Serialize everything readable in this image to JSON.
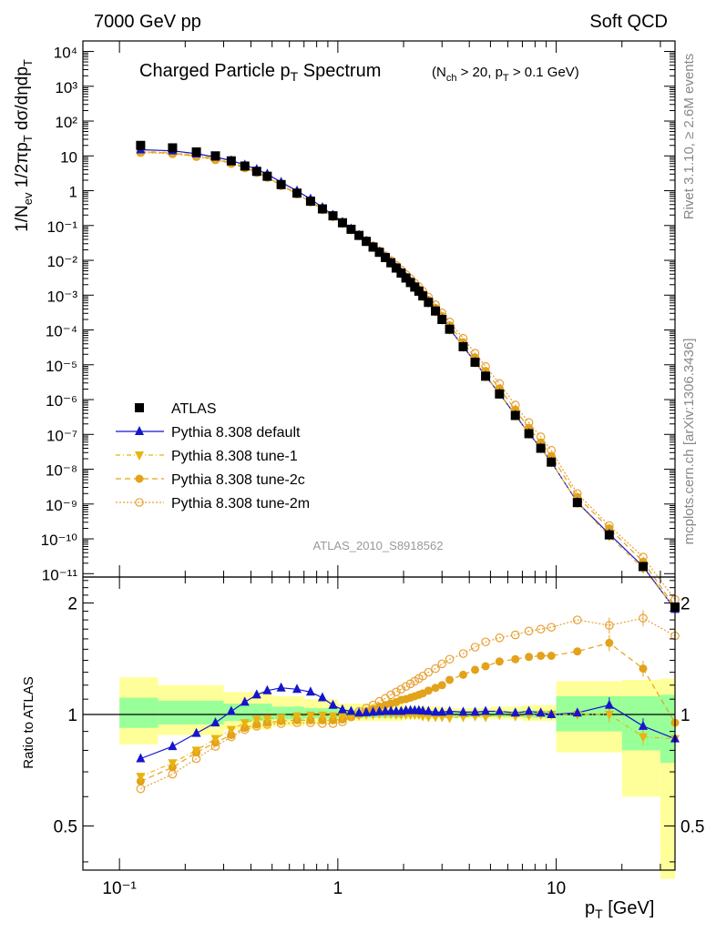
{
  "header": {
    "left": "7000 GeV pp",
    "right": "Soft QCD"
  },
  "side": {
    "top": "Rivet 3.1.10, ≥ 2.6M events",
    "bottom": "mcplots.cern.ch [arXiv:1306.3436]"
  },
  "colors": {
    "atlas": "#000000",
    "default": "#1515cc",
    "tune1": "#e8b411",
    "tune2c": "#e3a21a",
    "tune2m": "#e8a033",
    "band_outer": "#ffff99",
    "band_inner": "#99ff99"
  },
  "chart_data": [
    {
      "type": "line",
      "title": "Charged Particle p_T Spectrum",
      "subtitle": "(N_ch > 20, p_T > 0.1 GeV)",
      "ylabel": "1/N_ev 1/2πp_T dσ/dηdp_T",
      "xlabel": "",
      "analysis": "ATLAS_2010_S8918562",
      "xscale": "log",
      "yscale": "log",
      "xlim": [
        0.068,
        35
      ],
      "ylim": [
        8e-12,
        20000.0
      ],
      "xticks": [
        "10⁻¹",
        "1",
        "10"
      ],
      "yticks": [
        "10⁻¹¹",
        "10⁻¹⁰",
        "10⁻⁹",
        "10⁻⁸",
        "10⁻⁷",
        "10⁻⁶",
        "10⁻⁵",
        "10⁻⁴",
        "10⁻³",
        "10⁻²",
        "10⁻¹",
        "1",
        "10",
        "10²",
        "10³",
        "10⁴"
      ],
      "legend_position": "bottom-left",
      "x": [
        0.125,
        0.175,
        0.225,
        0.275,
        0.325,
        0.375,
        0.425,
        0.475,
        0.55,
        0.65,
        0.75,
        0.85,
        0.95,
        1.05,
        1.15,
        1.25,
        1.35,
        1.45,
        1.55,
        1.65,
        1.75,
        1.85,
        1.95,
        2.05,
        2.15,
        2.25,
        2.35,
        2.45,
        2.6,
        2.8,
        3.0,
        3.25,
        3.75,
        4.25,
        4.75,
        5.5,
        6.5,
        7.5,
        8.5,
        9.5,
        12.5,
        17.5,
        25,
        35
      ],
      "series": [
        {
          "name": "ATLAS",
          "marker": "square",
          "values": [
            20,
            17,
            13,
            10,
            7.2,
            5.1,
            3.6,
            2.6,
            1.5,
            0.85,
            0.5,
            0.3,
            0.19,
            0.12,
            0.078,
            0.052,
            0.035,
            0.024,
            0.017,
            0.012,
            0.0085,
            0.006,
            0.0043,
            0.0031,
            0.0023,
            0.0017,
            0.0013,
            0.00095,
            0.00062,
            0.00035,
            0.0002,
            0.000105,
            3.3e-05,
            1.18e-05,
            4.7e-06,
            1.45e-06,
            3.5e-07,
            1.05e-07,
            4e-08,
            1.6e-08,
            1.1e-09,
            1.3e-10,
            1.6e-11,
            1.1e-12
          ]
        },
        {
          "name": "Pythia 8.308 default",
          "marker": "triangle-up",
          "values": [
            15,
            14,
            11.5,
            9.3,
            7.3,
            5.5,
            4.1,
            3.0,
            1.75,
            0.99,
            0.58,
            0.33,
            0.2,
            0.125,
            0.08,
            0.053,
            0.0355,
            0.0243,
            0.0172,
            0.0121,
            0.0086,
            0.0061,
            0.0044,
            0.0032,
            0.00235,
            0.00174,
            0.00133,
            0.00097,
            0.00063,
            0.000355,
            0.000203,
            0.000107,
            3.35e-05,
            1.2e-05,
            4.8e-06,
            1.48e-06,
            3.6e-07,
            1.07e-07,
            4.05e-08,
            1.6e-08,
            1.12e-09,
            1.38e-10,
            1.6e-11,
            9.5e-13
          ]
        },
        {
          "name": "Pythia 8.308 tune-1",
          "marker": "triangle-down",
          "values": [
            13.5,
            12.5,
            10.4,
            8.6,
            6.5,
            4.8,
            3.45,
            2.5,
            1.46,
            0.84,
            0.5,
            0.3,
            0.185,
            0.118,
            0.077,
            0.052,
            0.035,
            0.024,
            0.0171,
            0.0121,
            0.0086,
            0.006,
            0.0043,
            0.0031,
            0.0023,
            0.0017,
            0.0013,
            0.00094,
            0.0006,
            0.00034,
            0.000196,
            0.000103,
            3.3e-05,
            1.18e-05,
            4.7e-06,
            1.45e-06,
            3.5e-07,
            1.05e-07,
            4e-08,
            1.6e-08,
            1.1e-09,
            1.2e-10,
            1.4e-11,
            1e-12
          ]
        },
        {
          "name": "Pythia 8.308 tune-2c",
          "marker": "circle",
          "values": [
            13,
            12,
            9.9,
            8.0,
            6.2,
            4.6,
            3.35,
            2.45,
            1.42,
            0.81,
            0.48,
            0.29,
            0.18,
            0.116,
            0.077,
            0.052,
            0.0357,
            0.0248,
            0.0178,
            0.0127,
            0.0091,
            0.0065,
            0.0047,
            0.0034,
            0.0026,
            0.0019,
            0.00149,
            0.0011,
            0.00073,
            0.00043,
            0.00025,
            0.000136,
            4.45e-05,
            1.62e-05,
            6.6e-06,
            2.1e-06,
            5.1e-07,
            1.55e-07,
            5.9e-08,
            2.4e-08,
            1.6e-09,
            2e-10,
            2.2e-11,
            1.1e-12
          ]
        },
        {
          "name": "Pythia 8.308 tune-2m",
          "marker": "circle-open",
          "values": [
            12.5,
            11.5,
            9.5,
            7.7,
            6.0,
            4.5,
            3.3,
            2.4,
            1.4,
            0.8,
            0.475,
            0.285,
            0.179,
            0.116,
            0.077,
            0.053,
            0.037,
            0.026,
            0.0188,
            0.0136,
            0.0099,
            0.0072,
            0.0053,
            0.0039,
            0.003,
            0.0022,
            0.00175,
            0.0013,
            0.00088,
            0.00053,
            0.00031,
            0.00017,
            5.75e-05,
            2.15e-05,
            8.9e-06,
            2.9e-06,
            7e-07,
            2.2e-07,
            8.5e-08,
            3.5e-08,
            2e-09,
            2.4e-10,
            3e-11,
            1.8e-12
          ]
        }
      ]
    },
    {
      "type": "line",
      "ylabel": "Ratio to ATLAS",
      "xlabel": "p_T  [GeV]",
      "xscale": "log",
      "xlim": [
        0.068,
        35
      ],
      "ylim": [
        0.38,
        2.35
      ],
      "xticks": [
        "10⁻¹",
        "1",
        "10"
      ],
      "yticks": [
        "0.5",
        "1",
        "2"
      ],
      "reference": 1,
      "band_edges": [
        0.1,
        0.15,
        0.3,
        0.5,
        0.7,
        1.0,
        2.0,
        3.0,
        5.0,
        7.0,
        10.0,
        20.0,
        30.0,
        40.0
      ],
      "band_outer": [
        [
          0.83,
          1.26
        ],
        [
          0.88,
          1.2
        ],
        [
          0.91,
          1.15
        ],
        [
          0.93,
          1.12
        ],
        [
          0.94,
          1.1
        ],
        [
          0.96,
          1.07
        ],
        [
          0.97,
          1.05
        ],
        [
          0.975,
          1.04
        ],
        [
          0.97,
          1.05
        ],
        [
          0.96,
          1.06
        ],
        [
          0.79,
          1.23
        ],
        [
          0.6,
          1.24
        ],
        [
          0.36,
          1.25
        ]
      ],
      "band_inner": [
        [
          0.92,
          1.11
        ],
        [
          0.94,
          1.09
        ],
        [
          0.96,
          1.07
        ],
        [
          0.97,
          1.05
        ],
        [
          0.975,
          1.04
        ],
        [
          0.98,
          1.03
        ],
        [
          0.985,
          1.02
        ],
        [
          0.985,
          1.02
        ],
        [
          0.985,
          1.02
        ],
        [
          0.98,
          1.025
        ],
        [
          0.9,
          1.12
        ],
        [
          0.8,
          1.12
        ],
        [
          0.74,
          1.13
        ]
      ],
      "x": [
        0.125,
        0.175,
        0.225,
        0.275,
        0.325,
        0.375,
        0.425,
        0.475,
        0.55,
        0.65,
        0.75,
        0.85,
        0.95,
        1.05,
        1.15,
        1.25,
        1.35,
        1.45,
        1.55,
        1.65,
        1.75,
        1.85,
        1.95,
        2.05,
        2.15,
        2.25,
        2.35,
        2.45,
        2.6,
        2.8,
        3.0,
        3.25,
        3.75,
        4.25,
        4.75,
        5.5,
        6.5,
        7.5,
        8.5,
        9.5,
        12.5,
        17.5,
        25,
        35
      ],
      "series": [
        {
          "name": "Pythia 8.308 default",
          "values": [
            0.76,
            0.82,
            0.89,
            0.95,
            1.02,
            1.08,
            1.13,
            1.16,
            1.18,
            1.17,
            1.15,
            1.11,
            1.06,
            1.03,
            1.02,
            1.01,
            1.012,
            1.015,
            1.018,
            1.02,
            1.02,
            1.02,
            1.02,
            1.025,
            1.025,
            1.025,
            1.025,
            1.022,
            1.02,
            1.015,
            1.015,
            1.02,
            1.015,
            1.015,
            1.02,
            1.02,
            1.01,
            1.02,
            1.01,
            1.0,
            1.01,
            1.06,
            0.93,
            0.86
          ]
        },
        {
          "name": "Pythia 8.308 tune-1",
          "values": [
            0.68,
            0.74,
            0.8,
            0.86,
            0.91,
            0.95,
            0.97,
            0.975,
            0.98,
            0.99,
            0.995,
            0.995,
            0.99,
            0.99,
            0.99,
            0.995,
            1.0,
            1.0,
            1.005,
            1.005,
            1.005,
            1.0,
            1.0,
            1.0,
            1.0,
            1.0,
            1.0,
            0.99,
            0.985,
            0.985,
            0.985,
            0.98,
            0.985,
            0.99,
            0.985,
            1.0,
            0.99,
            0.995,
            1.0,
            1.0,
            1.0,
            1.0,
            0.87,
            0.86
          ]
        },
        {
          "name": "Pythia 8.308 tune-2c",
          "values": [
            0.66,
            0.72,
            0.79,
            0.84,
            0.88,
            0.92,
            0.94,
            0.95,
            0.96,
            0.965,
            0.965,
            0.965,
            0.965,
            0.97,
            0.985,
            1.0,
            1.02,
            1.035,
            1.05,
            1.06,
            1.07,
            1.08,
            1.095,
            1.1,
            1.11,
            1.12,
            1.13,
            1.14,
            1.16,
            1.18,
            1.2,
            1.24,
            1.28,
            1.32,
            1.35,
            1.39,
            1.41,
            1.43,
            1.44,
            1.44,
            1.48,
            1.56,
            1.33,
            0.95
          ]
        },
        {
          "name": "Pythia 8.308 tune-2m",
          "values": [
            0.63,
            0.69,
            0.76,
            0.82,
            0.87,
            0.91,
            0.93,
            0.94,
            0.945,
            0.95,
            0.95,
            0.945,
            0.945,
            0.955,
            0.985,
            1.02,
            1.04,
            1.06,
            1.085,
            1.105,
            1.13,
            1.15,
            1.17,
            1.19,
            1.21,
            1.23,
            1.25,
            1.27,
            1.3,
            1.33,
            1.37,
            1.41,
            1.46,
            1.52,
            1.57,
            1.61,
            1.64,
            1.68,
            1.7,
            1.72,
            1.8,
            1.74,
            1.82,
            1.63
          ]
        }
      ]
    }
  ]
}
